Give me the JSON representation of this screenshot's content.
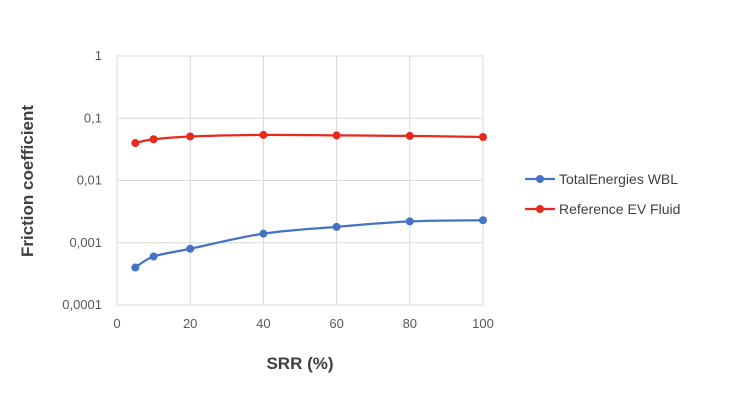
{
  "chart_data": {
    "type": "line",
    "xlabel": "SRR (%)",
    "ylabel": "Friction coefficient",
    "xlim": [
      0,
      100
    ],
    "ylim": [
      0.0001,
      1
    ],
    "y_scale": "log",
    "x_ticks": [
      "0",
      "20",
      "40",
      "60",
      "80",
      "100"
    ],
    "y_ticks": [
      "1",
      "0,1",
      "0,01",
      "0,001",
      "0,0001"
    ],
    "grid": true,
    "legend_position": "right",
    "series": [
      {
        "name": "TotalEnergies WBL",
        "color": "#4472C4",
        "x": [
          5,
          10,
          20,
          40,
          60,
          80,
          100
        ],
        "y": [
          0.0004,
          0.0006,
          0.0008,
          0.0014,
          0.0018,
          0.0022,
          0.0023
        ]
      },
      {
        "name": "Reference EV Fluid",
        "color": "#E8291C",
        "x": [
          5,
          10,
          20,
          40,
          60,
          80,
          100
        ],
        "y": [
          0.04,
          0.046,
          0.051,
          0.054,
          0.053,
          0.052,
          0.05
        ]
      }
    ]
  }
}
